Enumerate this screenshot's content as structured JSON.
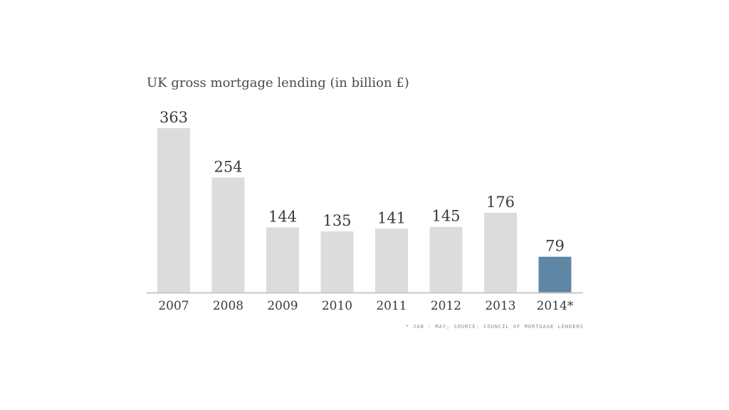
{
  "chart_data": {
    "type": "bar",
    "title": "UK gross mortgage lending (in billion £)",
    "categories": [
      "2007",
      "2008",
      "2009",
      "2010",
      "2011",
      "2012",
      "2013",
      "2014*"
    ],
    "values": [
      363,
      254,
      144,
      135,
      141,
      145,
      176,
      79
    ],
    "data_labels": [
      "363",
      "254",
      "144",
      "135",
      "141",
      "145",
      "176",
      "79"
    ],
    "xlabel": "",
    "ylabel": "",
    "ylim": [
      0,
      363
    ],
    "grid": false,
    "bar_color": "#dcdcdc",
    "highlight_color": "#5f86a5",
    "highlight_index": 7,
    "note": "* Jan - May; Source: Council of Mortgage Lenders"
  }
}
